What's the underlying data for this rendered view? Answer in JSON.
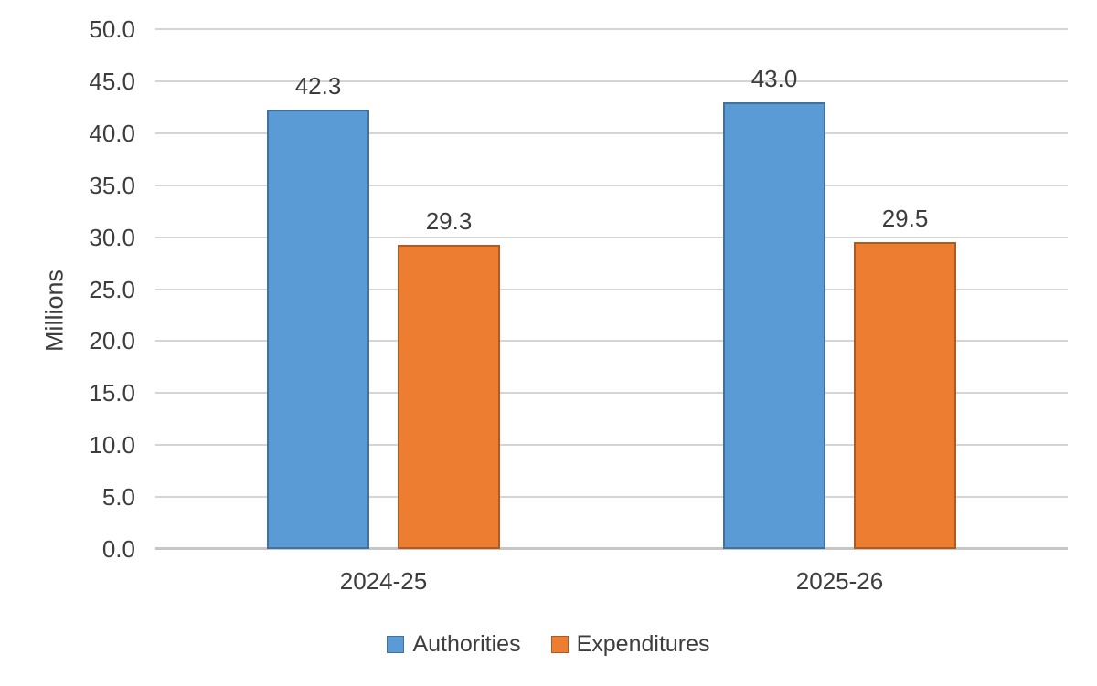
{
  "chart_data": {
    "type": "bar",
    "title": "",
    "categories": [
      "2024-25",
      "2025-26"
    ],
    "series": [
      {
        "name": "Authorities",
        "values": [
          42.3,
          43.0
        ],
        "labels": [
          "42.3",
          "43.0"
        ],
        "fill": "#5B9BD5",
        "border": "#41719C"
      },
      {
        "name": "Expenditures",
        "values": [
          29.3,
          29.5
        ],
        "labels": [
          "29.3",
          "29.5"
        ],
        "fill": "#ED7D31",
        "border": "#AE5A21"
      }
    ],
    "xlabel": "",
    "ylabel": "Millions",
    "ylim": [
      0,
      50
    ],
    "ytick_step": 5,
    "yticks": [
      "0.0",
      "5.0",
      "10.0",
      "15.0",
      "20.0",
      "25.0",
      "30.0",
      "35.0",
      "40.0",
      "45.0",
      "50.0"
    ],
    "grid": true,
    "legend_position": "bottom"
  },
  "colors": {
    "grid": "#D5D5D5",
    "axis": "#C6C6C6",
    "text": "#3D3D3D",
    "background": "#FFFFFF"
  }
}
